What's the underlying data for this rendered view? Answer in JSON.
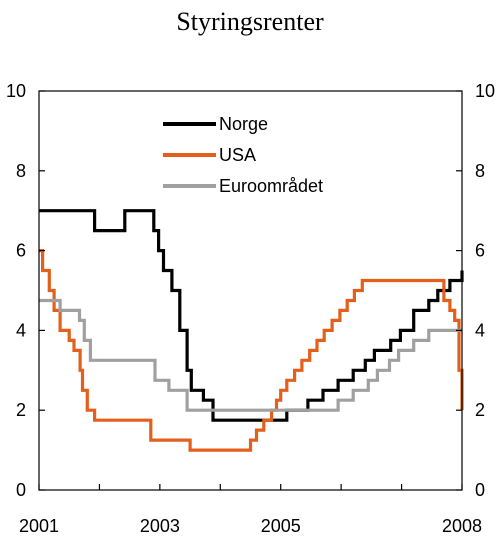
{
  "chart_data": {
    "type": "line",
    "title": "Styringsrenter",
    "step": true,
    "x_tick_labels": [
      "2001",
      "2003",
      "2005",
      "2008"
    ],
    "x_tick_label_positions": [
      2001.0,
      2003.0,
      2005.0,
      2008.0
    ],
    "x_minor_ticks": [
      2001,
      2002,
      2003,
      2004,
      2005,
      2006,
      2007,
      2008
    ],
    "xlim": [
      2001.0,
      2008.0
    ],
    "ylim": [
      0,
      10
    ],
    "y_ticks": [
      0,
      2,
      4,
      6,
      8,
      10
    ],
    "y_tick_labels_left": [
      "0",
      "2",
      "4",
      "6",
      "8",
      "10"
    ],
    "y_tick_labels_right": [
      "0",
      "2",
      "4",
      "6",
      "8",
      "10"
    ],
    "grid": false,
    "legend_position": "top-center",
    "series": [
      {
        "name": "Norge",
        "color": "#000000",
        "points": [
          [
            2001.0,
            7.0
          ],
          [
            2001.92,
            6.5
          ],
          [
            2002.42,
            7.0
          ],
          [
            2002.9,
            6.5
          ],
          [
            2002.98,
            6.0
          ],
          [
            2003.06,
            5.5
          ],
          [
            2003.2,
            5.0
          ],
          [
            2003.33,
            4.0
          ],
          [
            2003.45,
            3.0
          ],
          [
            2003.52,
            2.5
          ],
          [
            2003.72,
            2.25
          ],
          [
            2003.88,
            1.75
          ],
          [
            2005.1,
            2.0
          ],
          [
            2005.45,
            2.25
          ],
          [
            2005.7,
            2.5
          ],
          [
            2005.95,
            2.75
          ],
          [
            2006.2,
            3.0
          ],
          [
            2006.4,
            3.25
          ],
          [
            2006.55,
            3.5
          ],
          [
            2006.82,
            3.75
          ],
          [
            2006.98,
            4.0
          ],
          [
            2007.2,
            4.5
          ],
          [
            2007.45,
            4.75
          ],
          [
            2007.6,
            5.0
          ],
          [
            2007.8,
            5.25
          ],
          [
            2008.0,
            5.5
          ],
          [
            2008.1,
            5.5
          ]
        ]
      },
      {
        "name": "USA",
        "color": "#E35F1C",
        "points": [
          [
            2001.0,
            6.0
          ],
          [
            2001.06,
            5.5
          ],
          [
            2001.17,
            5.0
          ],
          [
            2001.25,
            4.5
          ],
          [
            2001.35,
            4.0
          ],
          [
            2001.5,
            3.75
          ],
          [
            2001.58,
            3.5
          ],
          [
            2001.68,
            3.0
          ],
          [
            2001.72,
            2.5
          ],
          [
            2001.8,
            2.0
          ],
          [
            2001.92,
            1.75
          ],
          [
            2002.85,
            1.25
          ],
          [
            2003.5,
            1.0
          ],
          [
            2004.5,
            1.25
          ],
          [
            2004.6,
            1.5
          ],
          [
            2004.72,
            1.75
          ],
          [
            2004.85,
            2.0
          ],
          [
            2004.93,
            2.25
          ],
          [
            2005.0,
            2.5
          ],
          [
            2005.1,
            2.75
          ],
          [
            2005.23,
            3.0
          ],
          [
            2005.35,
            3.25
          ],
          [
            2005.48,
            3.5
          ],
          [
            2005.6,
            3.75
          ],
          [
            2005.72,
            4.0
          ],
          [
            2005.85,
            4.25
          ],
          [
            2005.98,
            4.5
          ],
          [
            2006.1,
            4.75
          ],
          [
            2006.22,
            5.0
          ],
          [
            2006.35,
            5.25
          ],
          [
            2007.7,
            4.75
          ],
          [
            2007.8,
            4.5
          ],
          [
            2007.88,
            4.25
          ],
          [
            2007.95,
            3.0
          ],
          [
            2008.05,
            2.25
          ],
          [
            2008.1,
            2.0
          ]
        ]
      },
      {
        "name": "Euroområdet",
        "color": "#A0A0A0",
        "points": [
          [
            2001.0,
            4.75
          ],
          [
            2001.35,
            4.5
          ],
          [
            2001.67,
            4.25
          ],
          [
            2001.75,
            3.75
          ],
          [
            2001.85,
            3.25
          ],
          [
            2002.92,
            2.75
          ],
          [
            2003.15,
            2.5
          ],
          [
            2003.45,
            2.0
          ],
          [
            2005.95,
            2.25
          ],
          [
            2006.2,
            2.5
          ],
          [
            2006.45,
            2.75
          ],
          [
            2006.6,
            3.0
          ],
          [
            2006.8,
            3.25
          ],
          [
            2006.95,
            3.5
          ],
          [
            2007.2,
            3.75
          ],
          [
            2007.45,
            4.0
          ],
          [
            2008.1,
            4.0
          ]
        ]
      }
    ]
  }
}
